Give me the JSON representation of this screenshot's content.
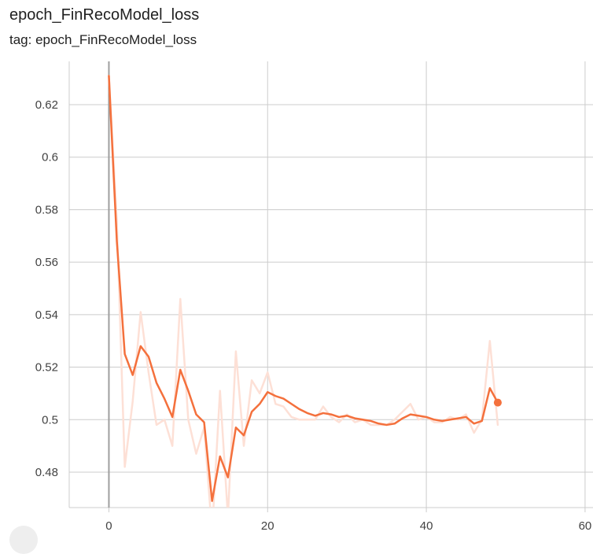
{
  "header": {
    "title": "epoch_FinRecoModel_loss",
    "tag_line": "tag: epoch_FinRecoModel_loss"
  },
  "colors": {
    "smoothed": "#f4703c",
    "raw": "#fde0d6",
    "grid": "#cccccc",
    "zero_axis": "#9e9e9e"
  },
  "chart_data": {
    "type": "line",
    "xlim": [
      -5,
      61
    ],
    "ylim": [
      0.4665,
      0.6365
    ],
    "x_ticks": [
      0,
      20,
      40,
      60
    ],
    "y_ticks": [
      0.48,
      0.5,
      0.52,
      0.54,
      0.56,
      0.58,
      0.6,
      0.62
    ],
    "grid": true,
    "series": [
      {
        "role": "raw",
        "x": [
          0,
          1,
          2,
          3,
          4,
          5,
          6,
          7,
          8,
          9,
          10,
          11,
          12,
          13,
          14,
          15,
          16,
          17,
          18,
          19,
          20,
          21,
          22,
          23,
          24,
          25,
          26,
          27,
          28,
          29,
          30,
          31,
          32,
          33,
          34,
          35,
          36,
          37,
          38,
          39,
          40,
          41,
          42,
          43,
          44,
          45,
          46,
          47,
          48,
          49
        ],
        "values": [
          0.631,
          0.576,
          0.482,
          0.507,
          0.541,
          0.518,
          0.498,
          0.5,
          0.49,
          0.546,
          0.5,
          0.487,
          0.497,
          0.457,
          0.511,
          0.463,
          0.526,
          0.49,
          0.515,
          0.51,
          0.518,
          0.506,
          0.505,
          0.501,
          0.5,
          0.5,
          0.5,
          0.505,
          0.501,
          0.499,
          0.502,
          0.499,
          0.5,
          0.498,
          0.498,
          0.498,
          0.5,
          0.503,
          0.506,
          0.5,
          0.501,
          0.499,
          0.499,
          0.501,
          0.5,
          0.502,
          0.495,
          0.5,
          0.53,
          0.498
        ]
      },
      {
        "role": "smoothed",
        "x": [
          0,
          1,
          2,
          3,
          4,
          5,
          6,
          7,
          8,
          9,
          10,
          11,
          12,
          13,
          14,
          15,
          16,
          17,
          18,
          19,
          20,
          21,
          22,
          23,
          24,
          25,
          26,
          27,
          28,
          29,
          30,
          31,
          32,
          33,
          34,
          35,
          36,
          37,
          38,
          39,
          40,
          41,
          42,
          43,
          44,
          45,
          46,
          47,
          48,
          49
        ],
        "values": [
          0.631,
          0.568,
          0.525,
          0.517,
          0.528,
          0.524,
          0.514,
          0.508,
          0.501,
          0.519,
          0.511,
          0.502,
          0.499,
          0.469,
          0.486,
          0.478,
          0.497,
          0.494,
          0.503,
          0.506,
          0.5105,
          0.509,
          0.508,
          0.506,
          0.504,
          0.5025,
          0.5015,
          0.5025,
          0.502,
          0.501,
          0.5015,
          0.5005,
          0.5,
          0.4995,
          0.4985,
          0.498,
          0.4985,
          0.5005,
          0.502,
          0.5015,
          0.501,
          0.5,
          0.4995,
          0.5,
          0.5005,
          0.501,
          0.4985,
          0.4995,
          0.512,
          0.5065
        ]
      }
    ]
  }
}
